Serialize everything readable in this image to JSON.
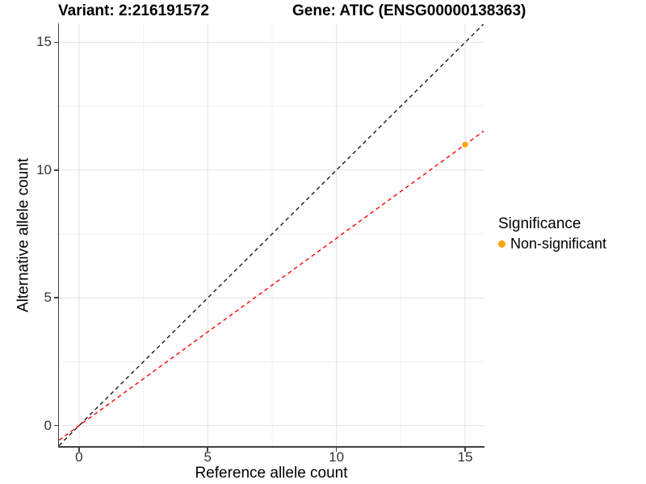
{
  "chart_data": {
    "type": "scatter",
    "title_left": "Variant: 2:216191572",
    "title_right": "Gene: ATIC (ENSG00000138363)",
    "xlabel": "Reference allele count",
    "ylabel": "Alternative allele count",
    "xlim": [
      -0.78,
      15.72
    ],
    "ylim": [
      -0.8,
      15.71
    ],
    "x_ticks": [
      0,
      5,
      10,
      15
    ],
    "y_ticks": [
      0,
      5,
      10,
      15
    ],
    "x_minor_ticks": [
      2.5,
      7.5,
      12.5
    ],
    "y_minor_ticks": [
      2.5,
      7.5,
      12.5
    ],
    "grid": true,
    "colors": {
      "major_grid": "#e4e4e4",
      "minor_grid": "#f1f1f1",
      "axis": "#3f3f3f",
      "identity_line": "#1a1a1a",
      "fit_line": "#ff0000",
      "point_nonsignificant": "#ffa500"
    },
    "points": [
      {
        "x": 15,
        "y": 11,
        "series": "Non-significant",
        "color": "#ffa500"
      }
    ],
    "lines": [
      {
        "name": "identity-line",
        "slope": 1.0,
        "intercept": 0,
        "color": "#1a1a1a",
        "style": "dashed"
      },
      {
        "name": "fitted-line",
        "slope": 0.7333,
        "intercept": 0,
        "color": "#ff0000",
        "style": "dashed"
      }
    ],
    "legend": {
      "title": "Significance",
      "position": "right",
      "items": [
        {
          "label": "Non-significant",
          "color": "#ffa500"
        }
      ]
    }
  }
}
